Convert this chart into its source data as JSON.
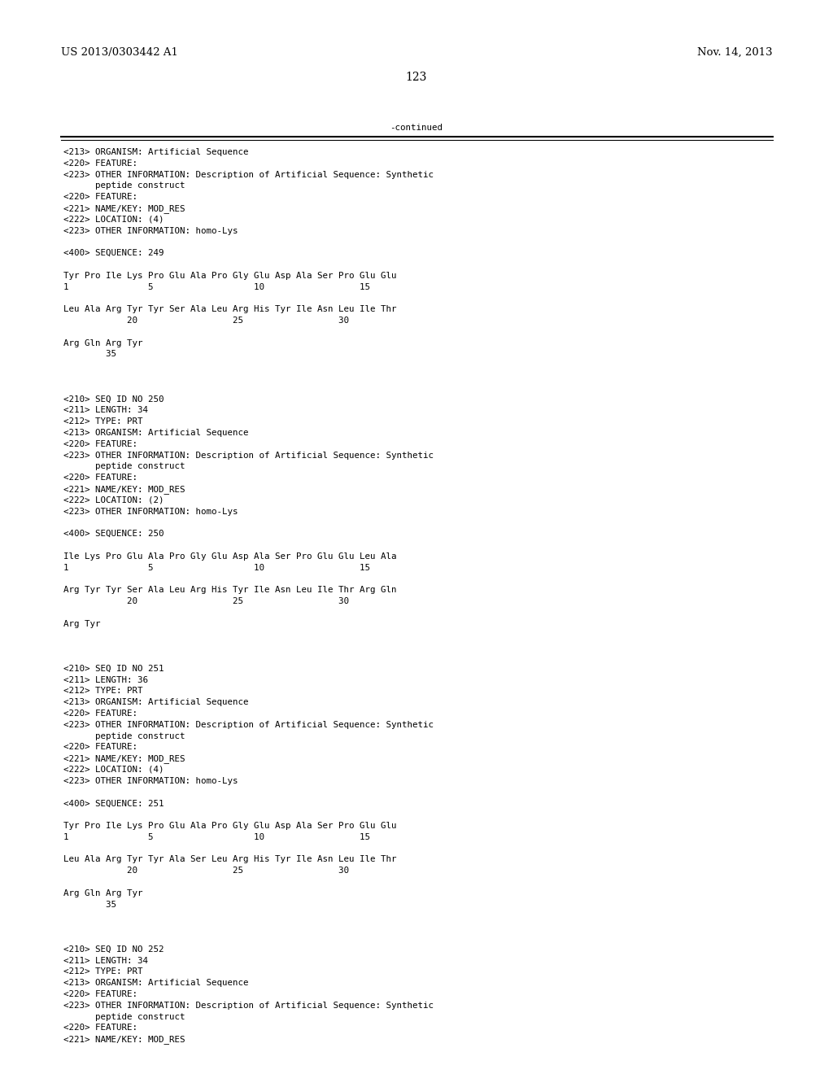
{
  "header_left": "US 2013/0303442 A1",
  "header_right": "Nov. 14, 2013",
  "page_number": "123",
  "continued_label": "-continued",
  "bg_color": "#ffffff",
  "text_color": "#000000",
  "font_size_header": 9.5,
  "font_size_page": 10.0,
  "font_size_body": 7.8,
  "lines": [
    "<213> ORGANISM: Artificial Sequence",
    "<220> FEATURE:",
    "<223> OTHER INFORMATION: Description of Artificial Sequence: Synthetic",
    "      peptide construct",
    "<220> FEATURE:",
    "<221> NAME/KEY: MOD_RES",
    "<222> LOCATION: (4)",
    "<223> OTHER INFORMATION: homo-Lys",
    "",
    "<400> SEQUENCE: 249",
    "",
    "Tyr Pro Ile Lys Pro Glu Ala Pro Gly Glu Asp Ala Ser Pro Glu Glu",
    "1               5                   10                  15",
    "",
    "Leu Ala Arg Tyr Tyr Ser Ala Leu Arg His Tyr Ile Asn Leu Ile Thr",
    "            20                  25                  30",
    "",
    "Arg Gln Arg Tyr",
    "        35",
    "",
    "",
    "",
    "<210> SEQ ID NO 250",
    "<211> LENGTH: 34",
    "<212> TYPE: PRT",
    "<213> ORGANISM: Artificial Sequence",
    "<220> FEATURE:",
    "<223> OTHER INFORMATION: Description of Artificial Sequence: Synthetic",
    "      peptide construct",
    "<220> FEATURE:",
    "<221> NAME/KEY: MOD_RES",
    "<222> LOCATION: (2)",
    "<223> OTHER INFORMATION: homo-Lys",
    "",
    "<400> SEQUENCE: 250",
    "",
    "Ile Lys Pro Glu Ala Pro Gly Glu Asp Ala Ser Pro Glu Glu Leu Ala",
    "1               5                   10                  15",
    "",
    "Arg Tyr Tyr Ser Ala Leu Arg His Tyr Ile Asn Leu Ile Thr Arg Gln",
    "            20                  25                  30",
    "",
    "Arg Tyr",
    "",
    "",
    "",
    "<210> SEQ ID NO 251",
    "<211> LENGTH: 36",
    "<212> TYPE: PRT",
    "<213> ORGANISM: Artificial Sequence",
    "<220> FEATURE:",
    "<223> OTHER INFORMATION: Description of Artificial Sequence: Synthetic",
    "      peptide construct",
    "<220> FEATURE:",
    "<221> NAME/KEY: MOD_RES",
    "<222> LOCATION: (4)",
    "<223> OTHER INFORMATION: homo-Lys",
    "",
    "<400> SEQUENCE: 251",
    "",
    "Tyr Pro Ile Lys Pro Glu Ala Pro Gly Glu Asp Ala Ser Pro Glu Glu",
    "1               5                   10                  15",
    "",
    "Leu Ala Arg Tyr Tyr Ala Ser Leu Arg His Tyr Ile Asn Leu Ile Thr",
    "            20                  25                  30",
    "",
    "Arg Gln Arg Tyr",
    "        35",
    "",
    "",
    "",
    "<210> SEQ ID NO 252",
    "<211> LENGTH: 34",
    "<212> TYPE: PRT",
    "<213> ORGANISM: Artificial Sequence",
    "<220> FEATURE:",
    "<223> OTHER INFORMATION: Description of Artificial Sequence: Synthetic",
    "      peptide construct",
    "<220> FEATURE:",
    "<221> NAME/KEY: MOD_RES"
  ]
}
